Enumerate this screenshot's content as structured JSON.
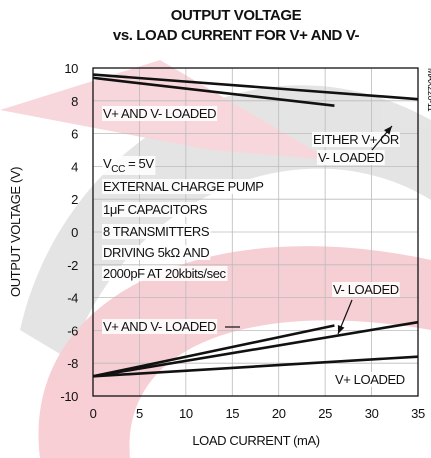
{
  "chart_data": {
    "type": "line",
    "title": "OUTPUT VOLTAGE",
    "subtitle": "vs. LOAD CURRENT FOR V+ AND V-",
    "x_label": "LOAD CURRENT (mA)",
    "y_label": "OUTPUT VOLTAGE (V)",
    "figure_id": "MAX220-11",
    "xlim": [
      0,
      35
    ],
    "xticks": [
      0,
      5,
      10,
      15,
      20,
      25,
      30,
      35
    ],
    "ylim": [
      -10,
      10
    ],
    "yticks": [
      -10,
      -8,
      -6,
      -4,
      -2,
      0,
      2,
      4,
      6,
      8,
      10
    ],
    "grid": true,
    "series": [
      {
        "color": "#111111",
        "x": [
          0,
          35
        ],
        "values": [
          9.6,
          8.1
        ]
      },
      {
        "color": "#111111",
        "x": [
          0,
          26
        ],
        "values": [
          9.4,
          7.7
        ]
      },
      {
        "color": "#111111",
        "x": [
          0,
          26
        ],
        "values": [
          -8.8,
          -5.7
        ]
      },
      {
        "color": "#111111",
        "x": [
          0,
          35
        ],
        "values": [
          -8.8,
          -5.5
        ]
      },
      {
        "color": "#111111",
        "x": [
          0,
          35
        ],
        "values": [
          -8.8,
          -7.6
        ]
      }
    ],
    "annotations": [
      "V+ AND V- LOADED",
      "EITHER V+ OR",
      "V- LOADED",
      [
        "V",
        "CC",
        " = 5V"
      ],
      "EXTERNAL CHARGE PUMP",
      "1μF CAPACITORS",
      "8 TRANSMITTERS",
      "DRIVING 5kΩ AND",
      "2000pF AT 20kbits/sec",
      "V- LOADED",
      "V+ AND V-  LOADED",
      "V+ LOADED"
    ]
  }
}
